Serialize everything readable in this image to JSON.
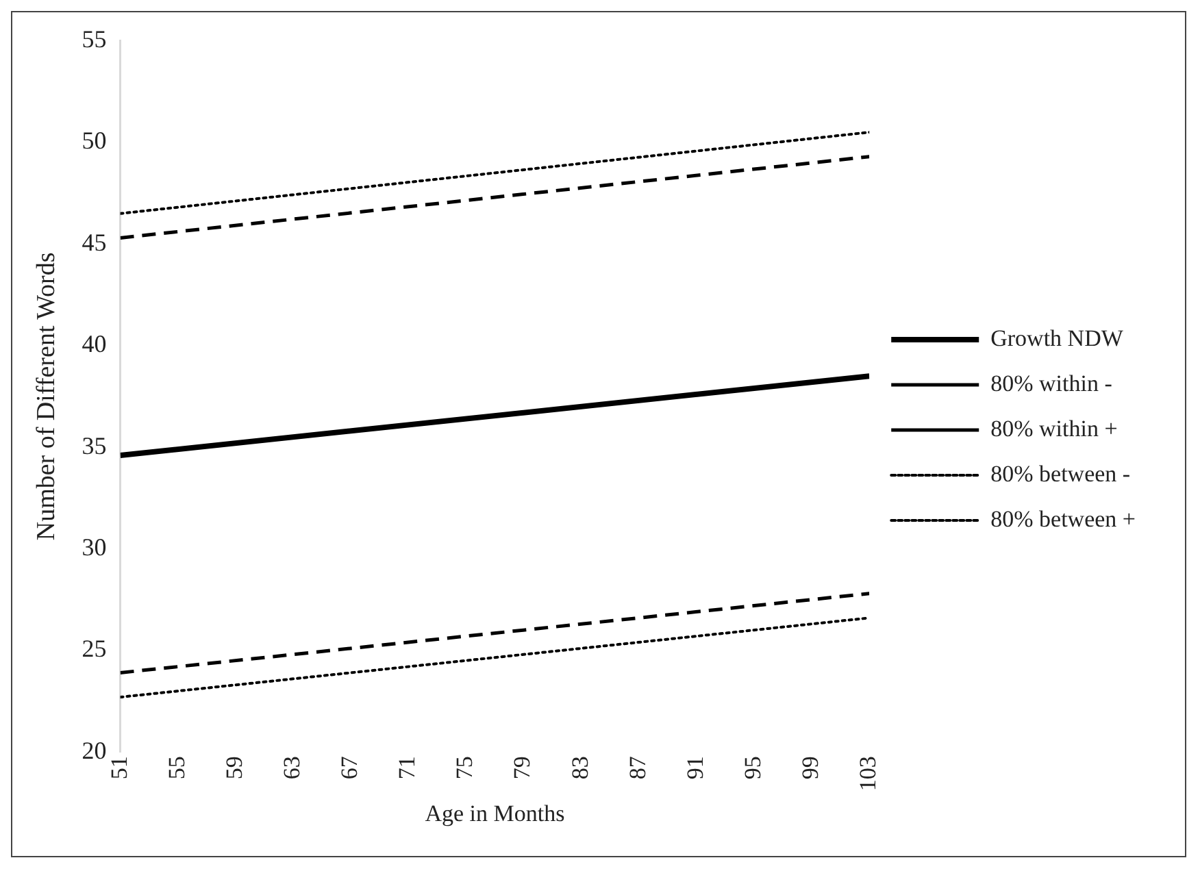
{
  "chart_data": {
    "type": "line",
    "xlabel": "Age in Months",
    "ylabel": "Number of Different Words",
    "x": [
      51,
      103
    ],
    "xlim": [
      51,
      103
    ],
    "xticks": [
      51,
      55,
      59,
      63,
      67,
      71,
      75,
      79,
      83,
      87,
      91,
      95,
      99,
      103
    ],
    "ylim": [
      20,
      55
    ],
    "yticks": [
      20,
      25,
      30,
      35,
      40,
      45,
      50,
      55
    ],
    "grid": false,
    "legend": "right",
    "marker": "none",
    "series": [
      {
        "name": "Growth NDW",
        "color": "#000000",
        "line_style": "solid",
        "values": [
          34.6,
          38.5
        ]
      },
      {
        "name": "80% within -",
        "color": "#000000",
        "line_style": "dashed",
        "values": [
          23.9,
          27.8
        ]
      },
      {
        "name": "80% within +",
        "color": "#000000",
        "line_style": "dashed",
        "values": [
          45.3,
          49.3
        ]
      },
      {
        "name": "80% between -",
        "color": "#000000",
        "line_style": "dotted",
        "values": [
          22.7,
          26.6
        ]
      },
      {
        "name": "80% between +",
        "color": "#000000",
        "line_style": "dotted",
        "values": [
          46.5,
          50.5
        ]
      }
    ]
  }
}
